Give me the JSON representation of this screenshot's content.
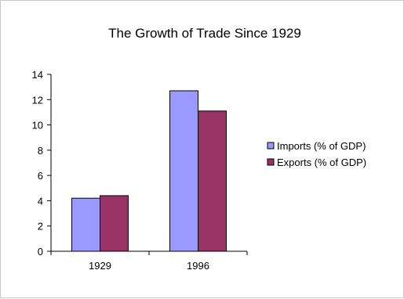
{
  "chart_data": {
    "type": "bar",
    "title": "The Growth of Trade Since 1929",
    "xlabel": "",
    "ylabel": "",
    "categories": [
      "1929",
      "1996"
    ],
    "series": [
      {
        "name": "Imports (% of GDP)",
        "values": [
          4.2,
          12.7
        ],
        "color": "#9999ff"
      },
      {
        "name": "Exports (% of GDP)",
        "values": [
          4.4,
          11.1
        ],
        "color": "#993366"
      }
    ],
    "ylim": [
      0,
      14
    ],
    "yticks": [
      "0",
      "2",
      "4",
      "6",
      "8",
      "10",
      "12",
      "14"
    ],
    "grid": false,
    "legend_position": "right"
  }
}
